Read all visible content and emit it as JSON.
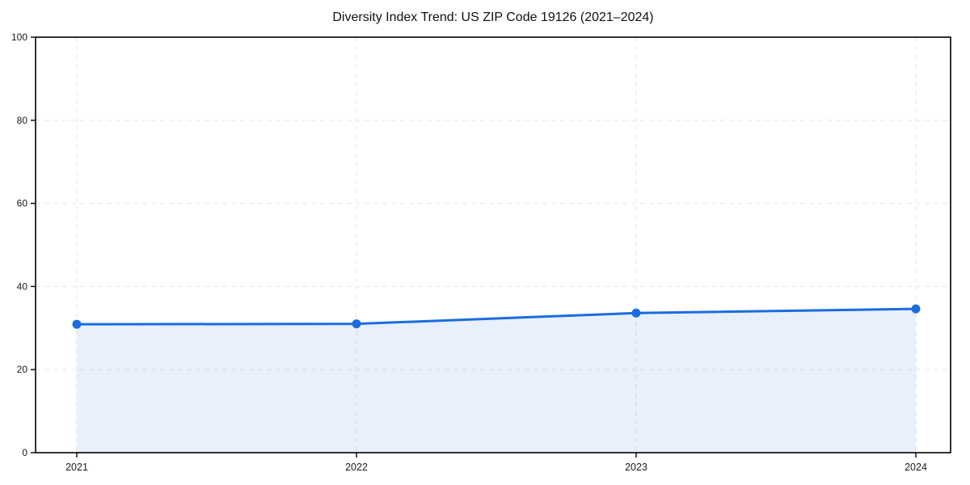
{
  "figure": {
    "background": "#ffffff"
  },
  "chart_data": {
    "type": "area",
    "title": "Diversity Index Trend: US ZIP Code 19126 (2021–2024)",
    "x": [
      "2021",
      "2022",
      "2023",
      "2024"
    ],
    "series": [
      {
        "name": "Diversity Index",
        "values": [
          30.9,
          31.0,
          33.6,
          34.6
        ]
      }
    ],
    "xlabel": "",
    "ylabel": "",
    "ylim": [
      0,
      100
    ],
    "yticks": [
      0,
      20,
      40,
      60,
      80,
      100
    ],
    "grid": "dashed-both-axes",
    "legend": "none",
    "marker": "circle",
    "colors": {
      "line": "#1a6ce0",
      "marker": "#1a6ce0",
      "fill": "rgba(26,108,224,0.10)",
      "grid": "#e6e6e6",
      "spine": "#000000",
      "tick_text": "#1a1a1a",
      "title_text": "#111111"
    }
  }
}
